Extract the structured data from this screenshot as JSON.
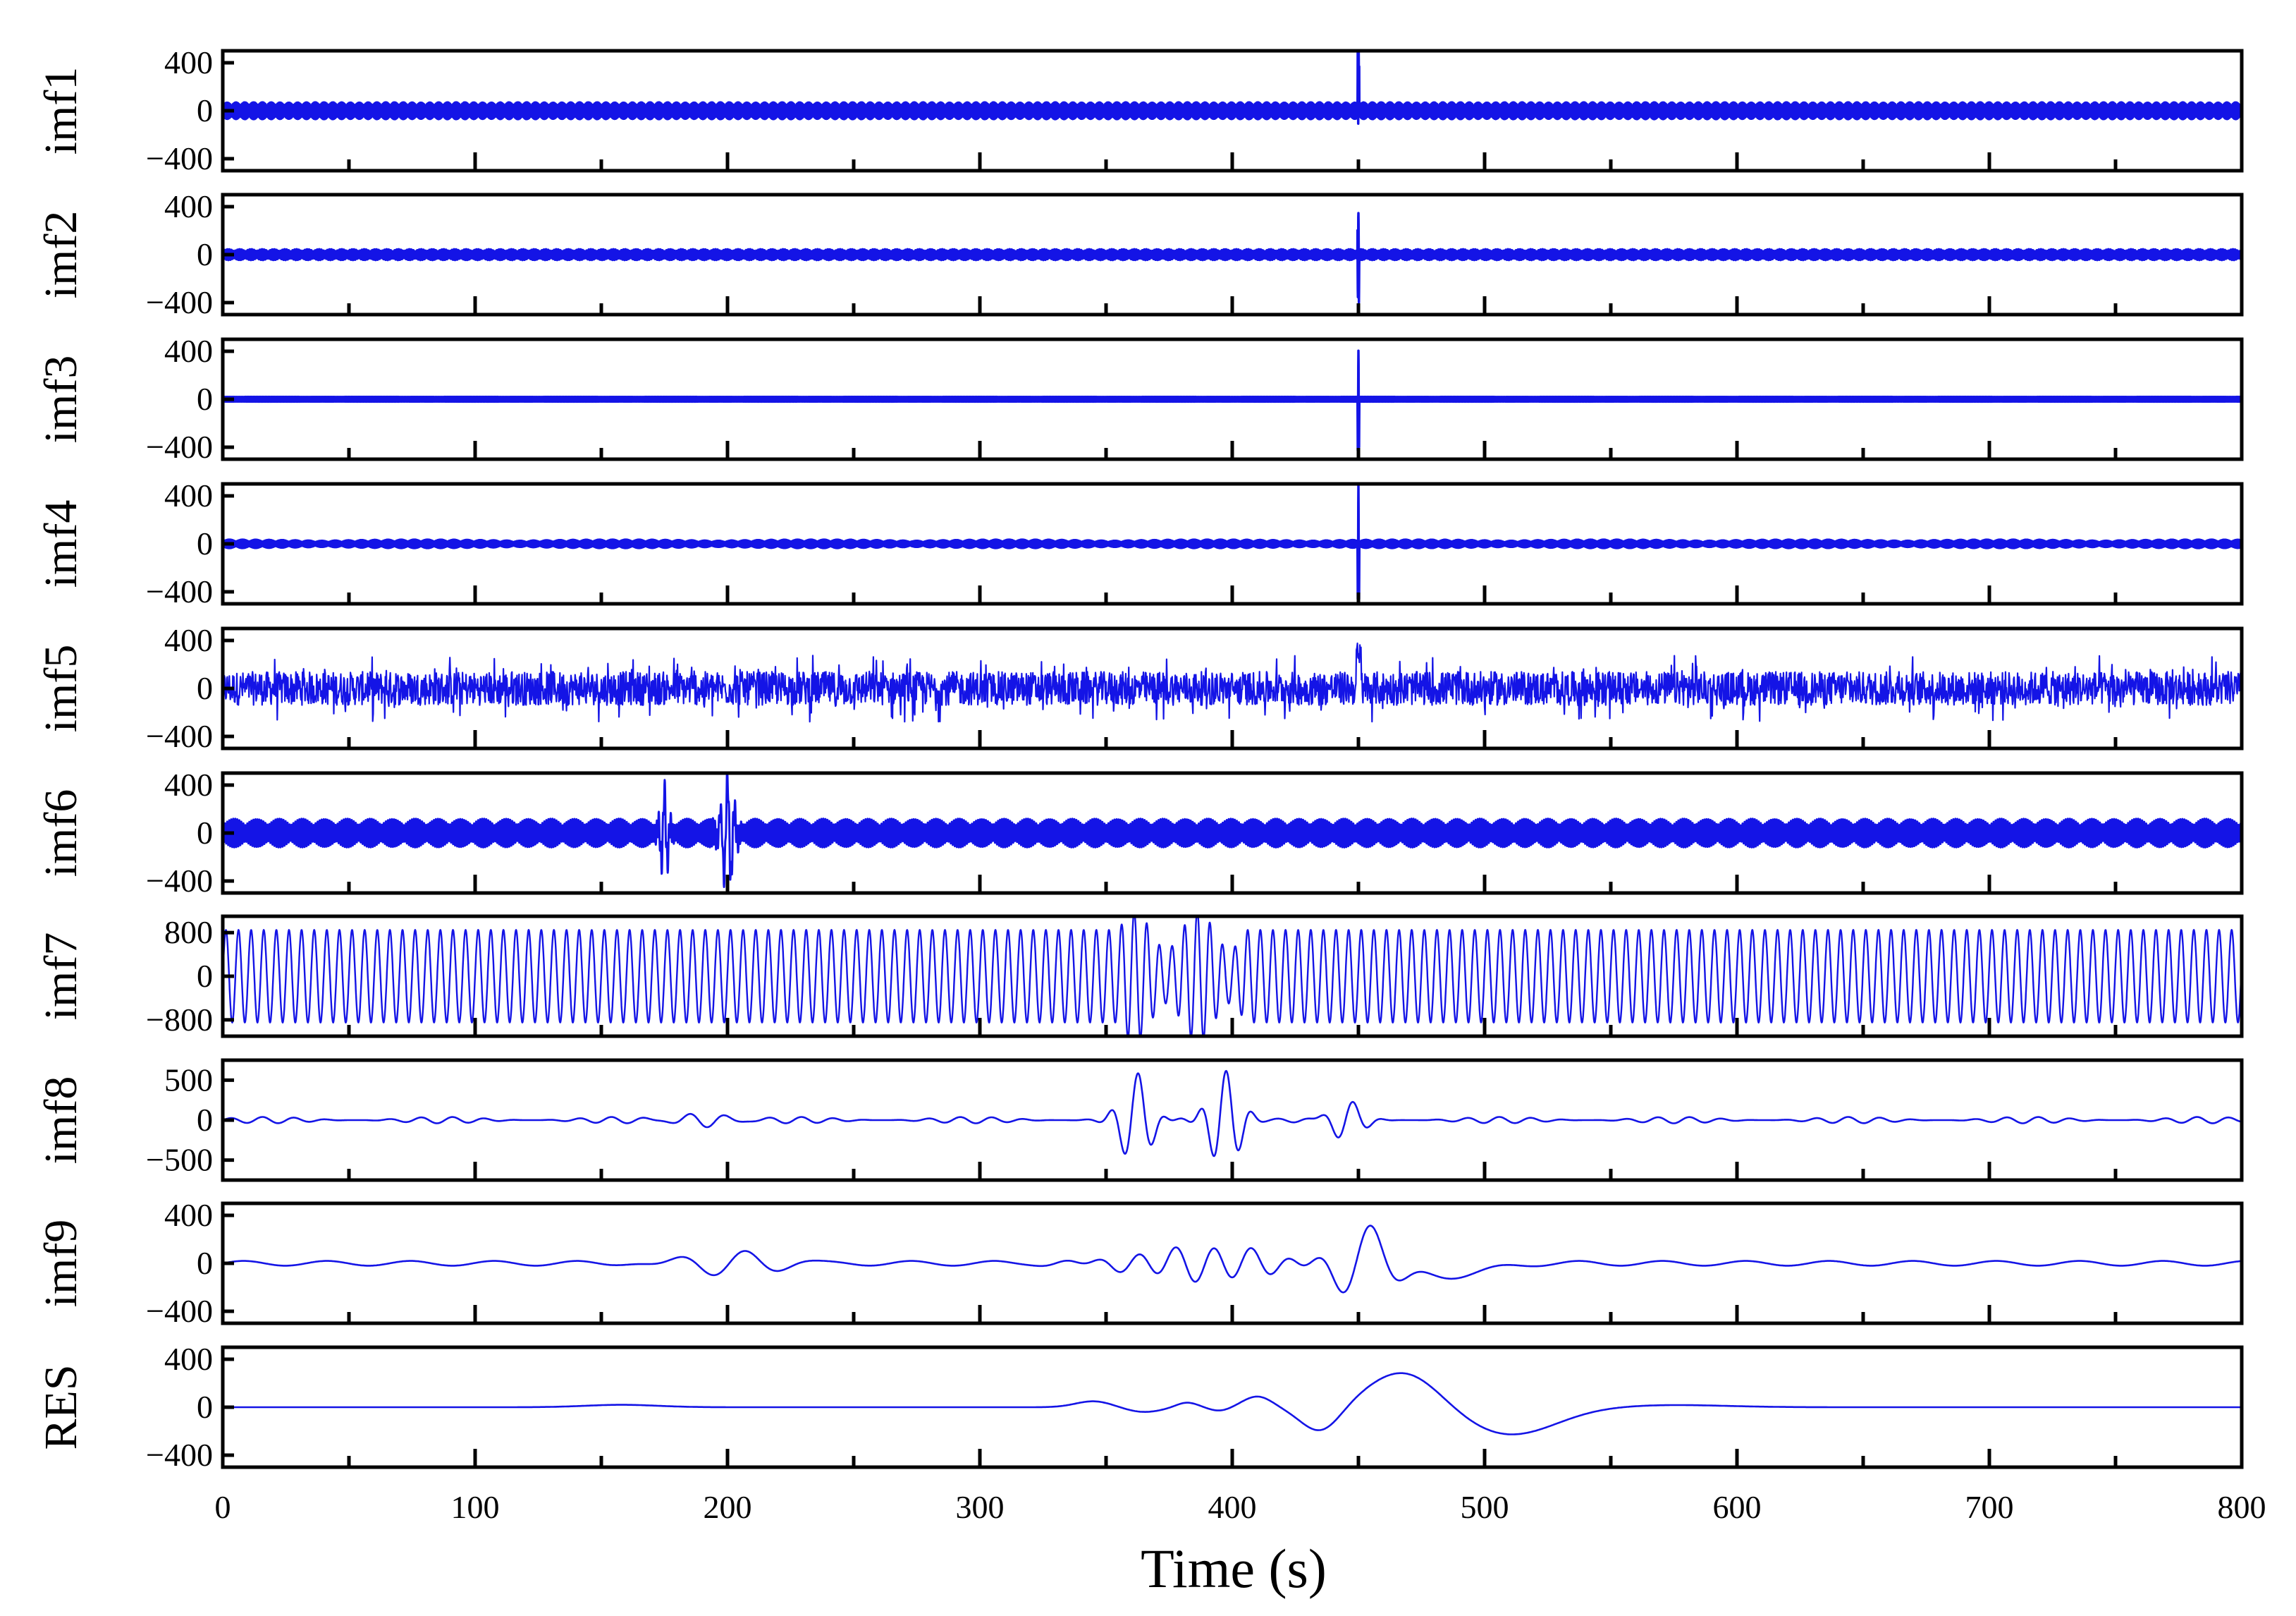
{
  "chart_data": {
    "type": "line",
    "figure": "Multi-panel decomposition of a signal into intrinsic mode functions",
    "xlabel": "Time (s)",
    "xlim": [
      0,
      800
    ],
    "xticks": [
      0,
      100,
      200,
      300,
      400,
      500,
      600,
      700,
      800
    ],
    "xtick_labels": [
      "0",
      "100",
      "200",
      "300",
      "400",
      "500",
      "600",
      "700",
      "800"
    ],
    "line_color": "#1414e6",
    "panels": [
      {
        "name": "imf1",
        "ylabel": "imf1",
        "ylim": [
          -500,
          500
        ],
        "yticks": [
          400,
          0,
          -400
        ],
        "ytick_labels": [
          "400",
          "0",
          "−400"
        ],
        "description": "dense oscillation, amplitude ~70, spike ~400 at t=450"
      },
      {
        "name": "imf2",
        "ylabel": "imf2",
        "ylim": [
          -500,
          500
        ],
        "yticks": [
          400,
          0,
          -400
        ],
        "ytick_labels": [
          "400",
          "0",
          "−400"
        ],
        "description": "dense oscillation, amplitude ~45, spike ~350 at t=450"
      },
      {
        "name": "imf3",
        "ylabel": "imf3",
        "ylim": [
          -500,
          500
        ],
        "yticks": [
          400,
          0,
          -400
        ],
        "ytick_labels": [
          "400",
          "0",
          "−400"
        ],
        "description": "dense oscillation, amplitude ~20, spike ~380 at t=450"
      },
      {
        "name": "imf4",
        "ylabel": "imf4",
        "ylim": [
          -500,
          500
        ],
        "yticks": [
          400,
          0,
          -400
        ],
        "ytick_labels": [
          "400",
          "0",
          "−400"
        ],
        "description": "dense oscillation, amplitude ~35, spike ~480 at t=450"
      },
      {
        "name": "imf5",
        "ylabel": "imf5",
        "ylim": [
          -500,
          500
        ],
        "yticks": [
          400,
          0,
          -400
        ],
        "ytick_labels": [
          "400",
          "0",
          "−400"
        ],
        "description": "noise-like, amplitude ~150-300"
      },
      {
        "name": "imf6",
        "ylabel": "imf6",
        "ylim": [
          -500,
          500
        ],
        "yticks": [
          400,
          0,
          -400
        ],
        "ytick_labels": [
          "400",
          "0",
          "−400"
        ],
        "description": "oscillation amplitude ~120, bursts near t=175 (350) and t=200 (450)"
      },
      {
        "name": "imf7",
        "ylabel": "imf7",
        "ylim": [
          -1100,
          1100
        ],
        "yticks": [
          800,
          0,
          -800
        ],
        "ytick_labels": [
          "800",
          "0",
          "−800"
        ],
        "description": "regular sinusoid amplitude ~850, ~0.2 Hz, disturbed between 355 and 405"
      },
      {
        "name": "imf8",
        "ylabel": "imf8",
        "ylim": [
          -750,
          750
        ],
        "yticks": [
          500,
          0,
          -500
        ],
        "ytick_labels": [
          "500",
          "0",
          "−500"
        ],
        "description": "small ripples, large bursts ~600 near t=360 and t=395, ~300 near t=445"
      },
      {
        "name": "imf9",
        "ylabel": "imf9",
        "ylim": [
          -500,
          500
        ],
        "yticks": [
          400,
          0,
          -400
        ],
        "ytick_labels": [
          "400",
          "0",
          "−400"
        ],
        "description": "slow oscillation, peak ~400 at t=458, trough ~-300 at t=443"
      },
      {
        "name": "RES",
        "ylabel": "RES",
        "ylim": [
          -500,
          500
        ],
        "yticks": [
          400,
          0,
          -400
        ],
        "ytick_labels": [
          "400",
          "0",
          "−400"
        ],
        "description": "residual trend, max ~300 at t=468, min ~-230 at t=510"
      }
    ]
  }
}
